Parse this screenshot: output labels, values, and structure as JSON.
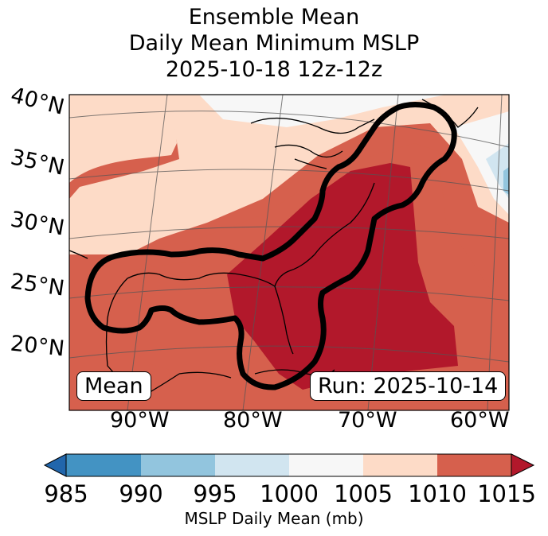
{
  "title": {
    "line1": "Ensemble Mean",
    "line2": "Daily Mean Minimum MSLP",
    "line3": "2025-10-18 12z-12z"
  },
  "map": {
    "lat_labels": [
      "40°N",
      "35°N",
      "30°N",
      "25°N",
      "20°N"
    ],
    "lon_labels": [
      "90°W",
      "80°W",
      "70°W",
      "60°W"
    ],
    "mean_box": "Mean",
    "run_box": "Run: 2025-10-14",
    "outline_color": "#000000"
  },
  "colorbar": {
    "label": "MSLP Daily Mean (mb)",
    "ticks": [
      "985",
      "990",
      "995",
      "1000",
      "1005",
      "1010",
      "1015"
    ],
    "colors": [
      "#2166ac",
      "#4393c3",
      "#92c5de",
      "#d1e5f0",
      "#f7f7f7",
      "#fddbc7",
      "#d6604d",
      "#b2182b"
    ]
  }
}
